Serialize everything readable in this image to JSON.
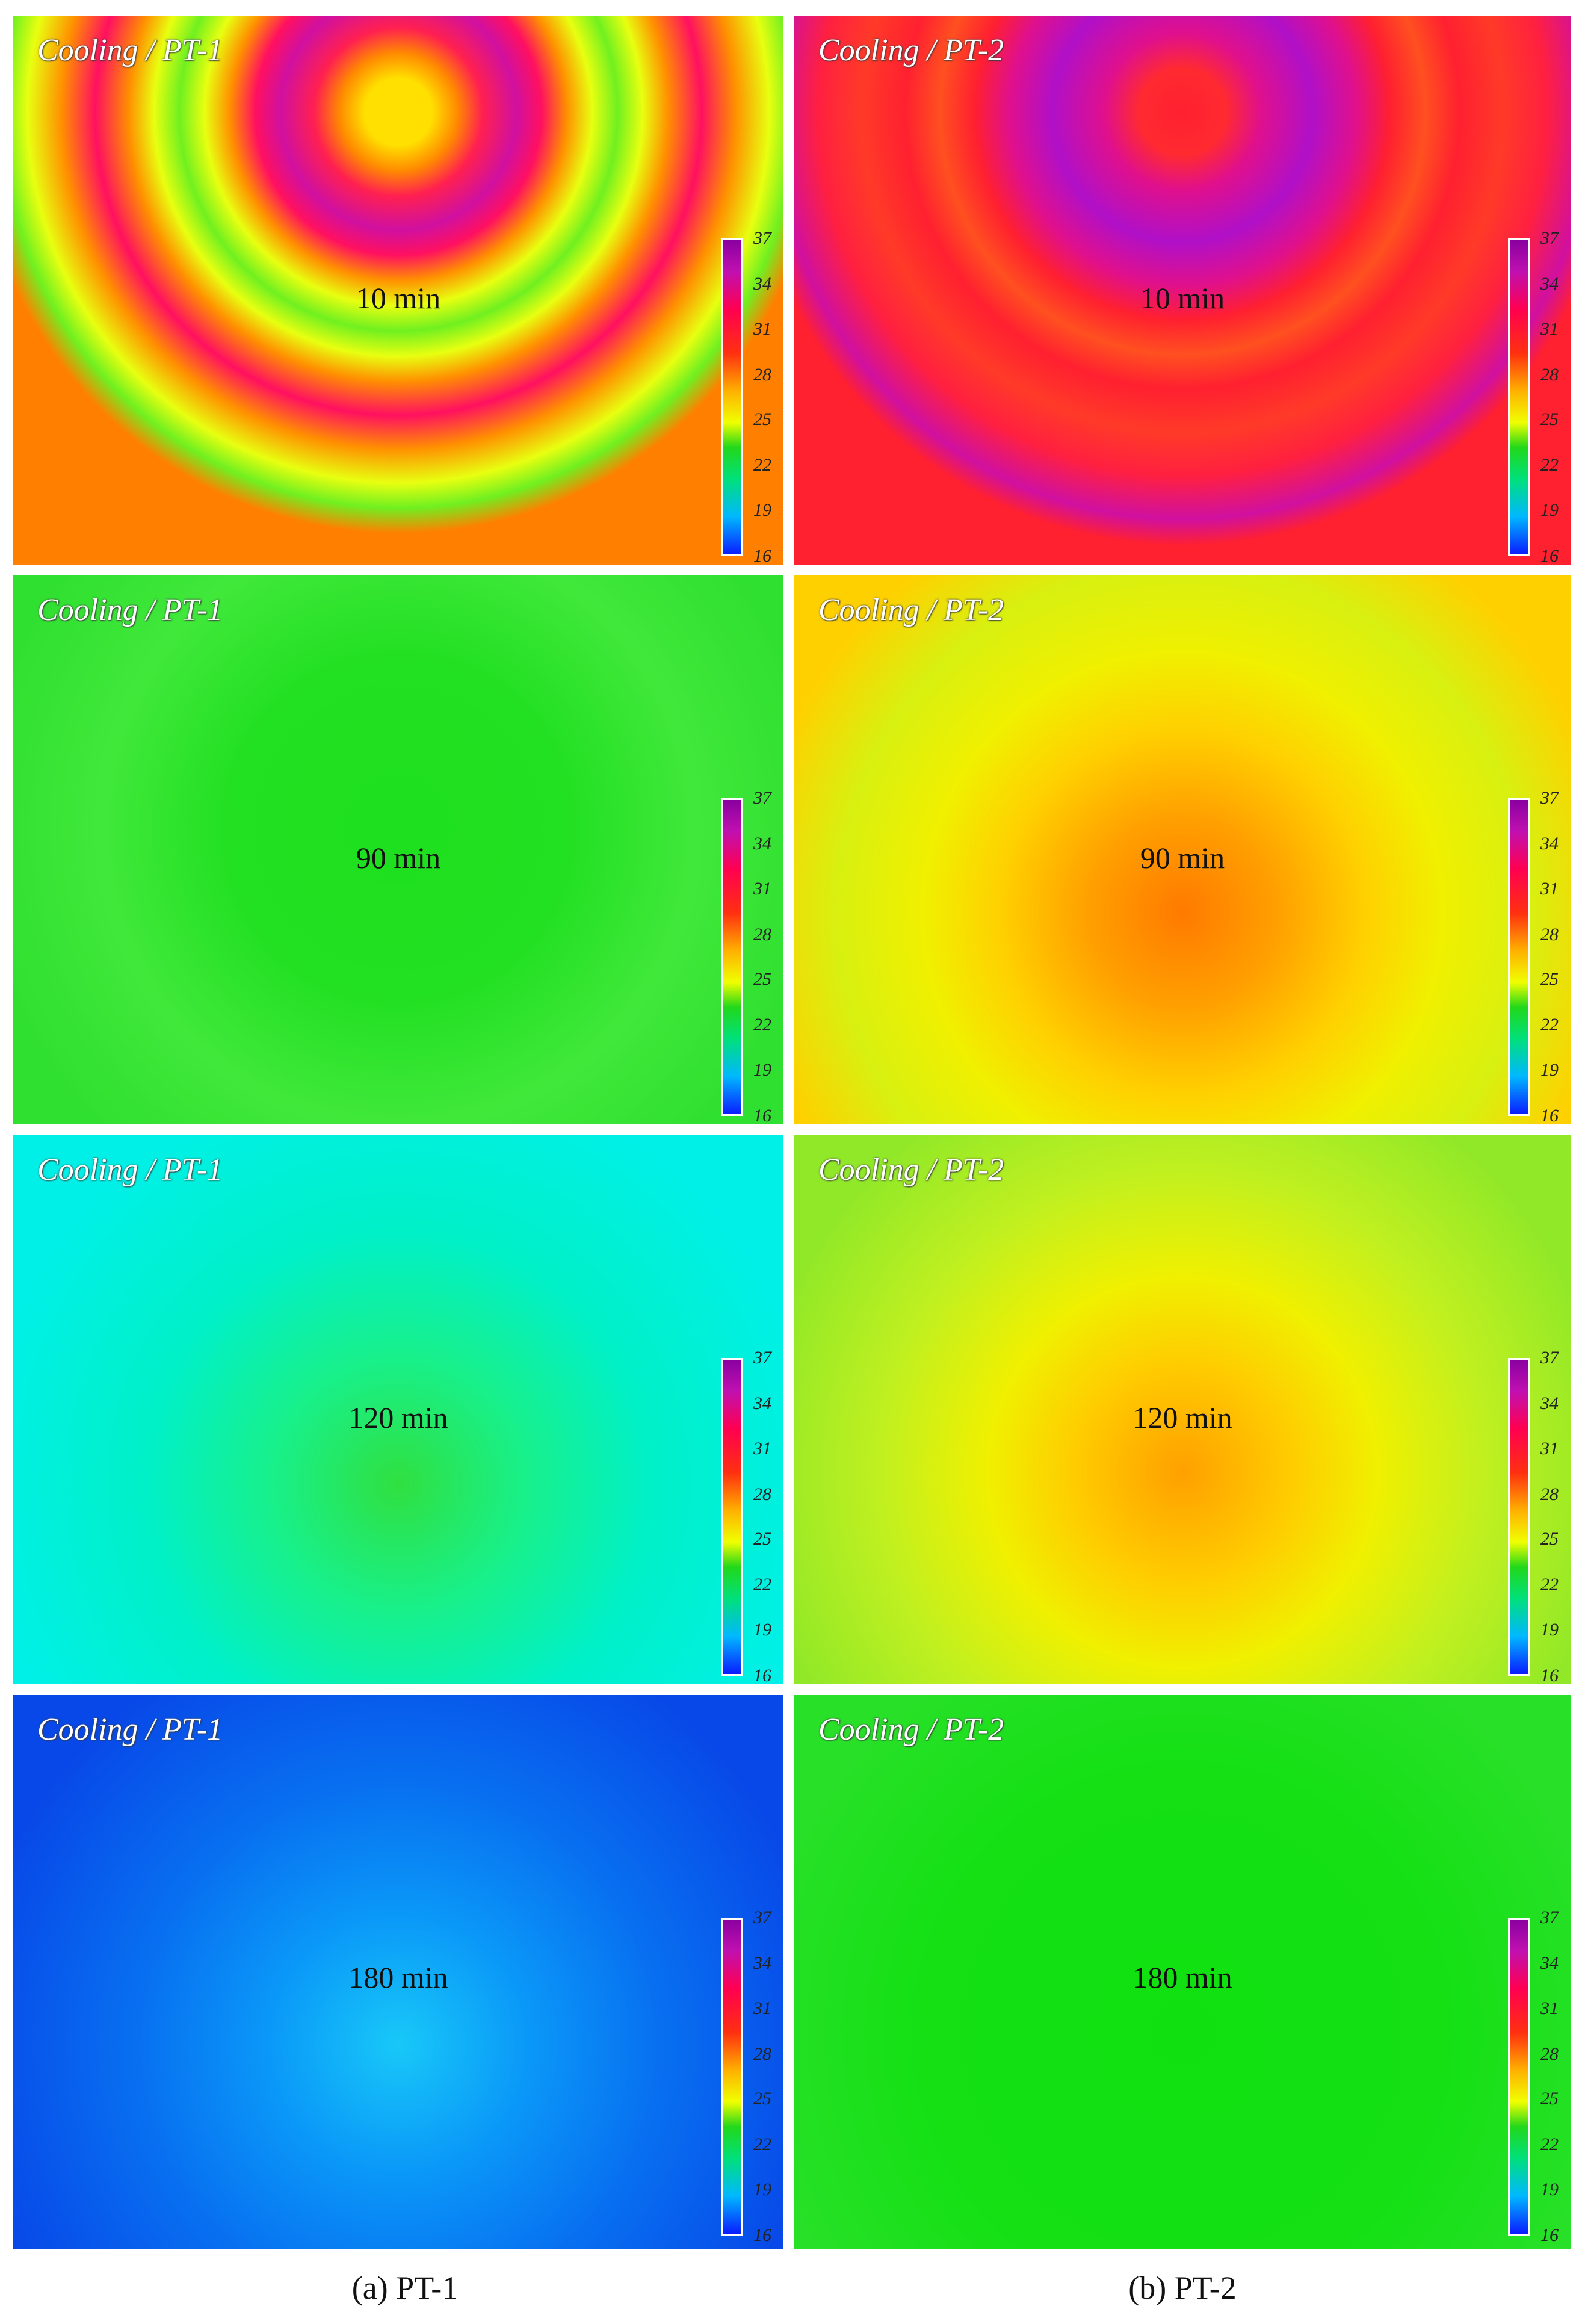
{
  "colorbar_ticks": [
    "37",
    "34",
    "31",
    "28",
    "25",
    "22",
    "19",
    "16"
  ],
  "captions": {
    "left": "(a) PT-1",
    "right": "(b) PT-2"
  },
  "panels": [
    {
      "title": "Cooling / PT-1",
      "time": "10 min",
      "pattern": "u-stripes-pt1"
    },
    {
      "title": "Cooling / PT-2",
      "time": "10 min",
      "pattern": "u-stripes-pt2"
    },
    {
      "title": "Cooling / PT-1",
      "time": "90 min",
      "pattern": "smooth-green"
    },
    {
      "title": "Cooling / PT-2",
      "time": "90 min",
      "pattern": "smooth-yellow-orange"
    },
    {
      "title": "Cooling / PT-1",
      "time": "120 min",
      "pattern": "smooth-cyan"
    },
    {
      "title": "Cooling / PT-2",
      "time": "120 min",
      "pattern": "smooth-yellow-green"
    },
    {
      "title": "Cooling / PT-1",
      "time": "180 min",
      "pattern": "smooth-blue"
    },
    {
      "title": "Cooling / PT-2",
      "time": "180 min",
      "pattern": "smooth-bright-green"
    }
  ]
}
